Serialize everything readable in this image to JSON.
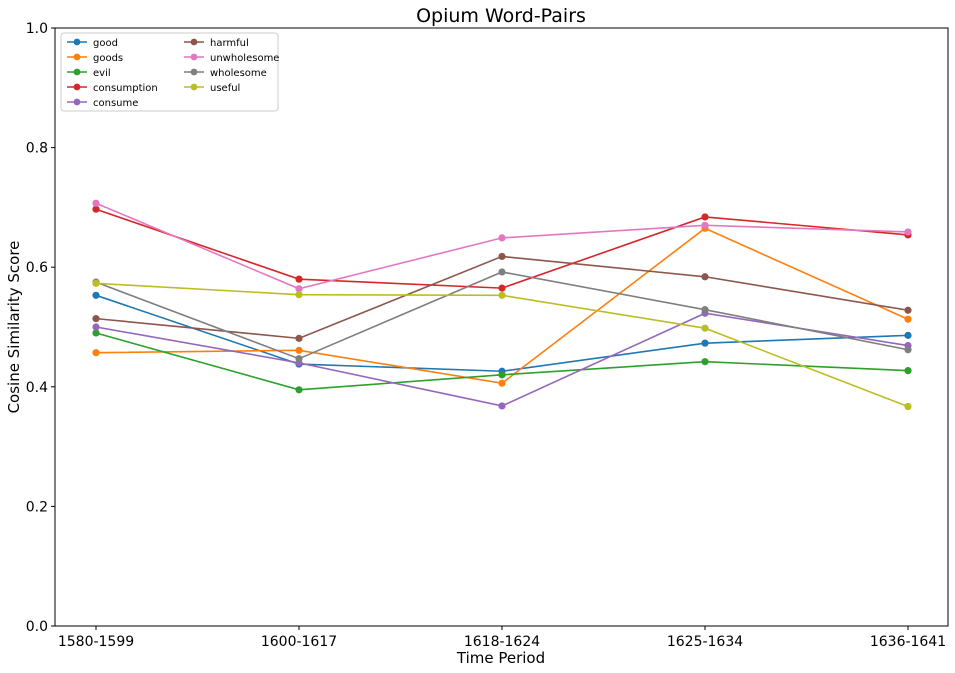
{
  "chart_data": {
    "type": "line",
    "title": "Opium Word-Pairs",
    "xlabel": "Time Period",
    "ylabel": "Cosine Similarity Score",
    "categories": [
      "1580-1599",
      "1600-1617",
      "1618-1624",
      "1625-1634",
      "1636-1641"
    ],
    "ylim": [
      0.0,
      1.0
    ],
    "yticks": [
      "0.0",
      "0.2",
      "0.4",
      "0.6",
      "0.8",
      "1.0"
    ],
    "grid": false,
    "legend_position": "top-left",
    "series": [
      {
        "name": "good",
        "color": "#1f77b4",
        "values": [
          0.553,
          0.438,
          0.426,
          0.473,
          0.486
        ]
      },
      {
        "name": "goods",
        "color": "#ff7f0e",
        "values": [
          0.457,
          0.461,
          0.406,
          0.665,
          0.513
        ]
      },
      {
        "name": "evil",
        "color": "#2ca02c",
        "values": [
          0.49,
          0.395,
          0.42,
          0.442,
          0.427
        ]
      },
      {
        "name": "consumption",
        "color": "#d62728",
        "values": [
          0.697,
          0.58,
          0.565,
          0.684,
          0.654
        ]
      },
      {
        "name": "consume",
        "color": "#9467bd",
        "values": [
          0.5,
          0.44,
          0.368,
          0.523,
          0.469
        ]
      },
      {
        "name": "harmful",
        "color": "#8c564b",
        "values": [
          0.514,
          0.481,
          0.618,
          0.584,
          0.528
        ]
      },
      {
        "name": "unwholesome",
        "color": "#e377c2",
        "values": [
          0.707,
          0.564,
          0.649,
          0.67,
          0.659
        ]
      },
      {
        "name": "wholesome",
        "color": "#7f7f7f",
        "values": [
          0.575,
          0.447,
          0.592,
          0.529,
          0.462
        ]
      },
      {
        "name": "useful",
        "color": "#bcbd22",
        "values": [
          0.573,
          0.554,
          0.553,
          0.498,
          0.367
        ]
      }
    ]
  }
}
